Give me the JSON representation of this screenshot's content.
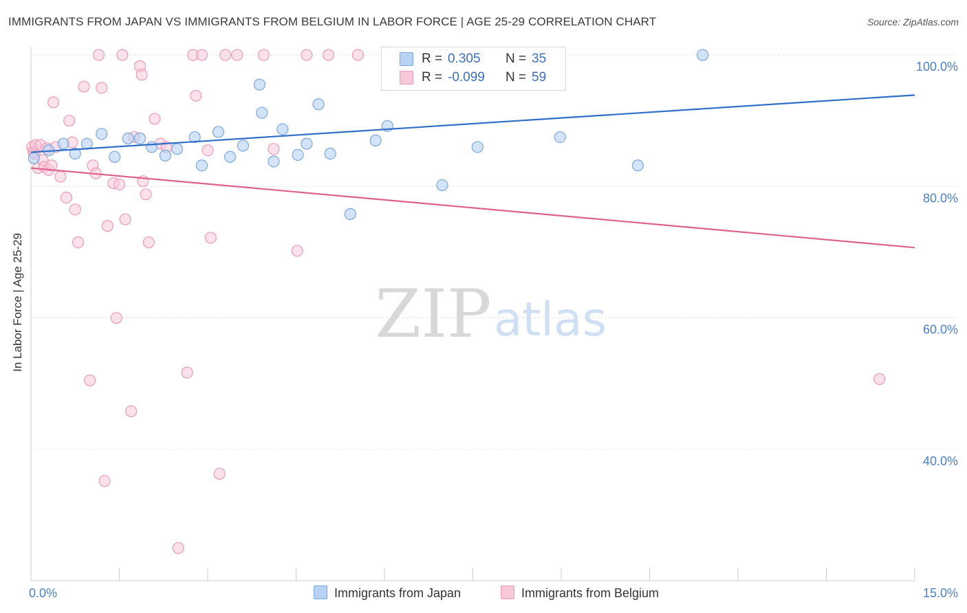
{
  "header": {
    "title": "IMMIGRANTS FROM JAPAN VS IMMIGRANTS FROM BELGIUM IN LABOR FORCE | AGE 25-29 CORRELATION CHART",
    "source": "Source: ZipAtlas.com"
  },
  "watermark": {
    "zip": "ZIP",
    "atlas": "atlas"
  },
  "legend": {
    "japan": {
      "r_label": "R =",
      "r_value": "0.305",
      "n_label": "N =",
      "n_value": "35"
    },
    "belgium": {
      "r_label": "R =",
      "r_value": "-0.099",
      "n_label": "N =",
      "n_value": "59"
    }
  },
  "colors": {
    "japan_fill": "#b8d2f4",
    "japan_stroke": "#7aa6e0",
    "japan_line": "#2e6fc7",
    "belgium_fill": "#f8c8d8",
    "belgium_stroke": "#ee9ab5",
    "belgium_line": "#e0608b",
    "axis_text": "#4a7fd0"
  },
  "chart_data": {
    "type": "scatter",
    "title": "IMMIGRANTS FROM JAPAN VS IMMIGRANTS FROM BELGIUM IN LABOR FORCE | AGE 25-29 CORRELATION CHART",
    "xlabel": "",
    "ylabel": "In Labor Force | Age 25-29",
    "xlim": [
      0,
      15
    ],
    "ylim": [
      20,
      100
    ],
    "x_tick_labels": [
      "0.0%",
      "15.0%"
    ],
    "y_tick_labels": [
      "100.0%",
      "80.0%",
      "60.0%",
      "40.0%"
    ],
    "y_ticks": [
      100,
      80,
      60,
      40
    ],
    "grid": true,
    "legend_position": "bottom",
    "series": [
      {
        "name": "Immigrants from Japan",
        "x": [
          0.05,
          0.3,
          0.55,
          0.75,
          0.95,
          1.2,
          1.42,
          1.65,
          1.85,
          2.05,
          2.28,
          2.48,
          2.78,
          2.9,
          3.18,
          3.38,
          3.6,
          3.88,
          3.92,
          4.12,
          4.27,
          4.53,
          4.68,
          4.88,
          5.08,
          5.42,
          5.85,
          6.05,
          6.25,
          6.98,
          7.0,
          7.58,
          8.98,
          10.3,
          11.4
        ],
        "y": [
          84.3,
          85.5,
          86.5,
          85.0,
          86.5,
          88.0,
          84.5,
          87.3,
          87.3,
          86.0,
          84.7,
          85.7,
          87.5,
          83.2,
          88.3,
          84.5,
          86.2,
          95.5,
          91.2,
          83.8,
          88.7,
          84.8,
          86.5,
          92.5,
          85.0,
          75.8,
          87.0,
          89.2,
          100.0,
          80.2,
          100.0,
          86.0,
          87.5,
          83.2,
          100.0
        ]
      },
      {
        "name": "Immigrants from Belgium",
        "x": [
          0.02,
          0.04,
          0.06,
          0.08,
          0.12,
          0.16,
          0.2,
          0.23,
          0.27,
          0.3,
          0.35,
          0.38,
          0.42,
          0.5,
          0.6,
          0.65,
          0.7,
          0.75,
          0.8,
          0.9,
          1.0,
          1.05,
          1.1,
          1.15,
          1.2,
          1.25,
          1.3,
          1.4,
          1.45,
          1.5,
          1.55,
          1.6,
          1.7,
          1.75,
          1.85,
          1.88,
          1.9,
          1.95,
          2.0,
          2.1,
          2.2,
          2.3,
          2.5,
          2.65,
          2.75,
          2.8,
          2.9,
          3.0,
          3.05,
          3.2,
          3.3,
          3.5,
          3.95,
          4.12,
          4.52,
          4.68,
          5.05,
          5.55,
          14.4
        ],
        "y": [
          86.0,
          85.3,
          85.0,
          86.3,
          82.8,
          86.3,
          84.0,
          83.0,
          85.8,
          82.5,
          83.2,
          92.8,
          86.0,
          81.5,
          78.3,
          90.0,
          86.7,
          76.5,
          71.5,
          95.2,
          50.5,
          83.2,
          82.0,
          100.0,
          95.0,
          35.2,
          74.0,
          80.5,
          60.0,
          80.3,
          100.0,
          75.0,
          45.8,
          87.5,
          98.3,
          97.0,
          80.8,
          78.8,
          71.5,
          90.3,
          86.5,
          86.0,
          25.0,
          51.7,
          100.0,
          93.8,
          100.0,
          85.5,
          72.2,
          36.3,
          100.0,
          100.0,
          100.0,
          85.7,
          70.2,
          100.0,
          100.0,
          100.0,
          50.7
        ]
      }
    ],
    "trend_lines": [
      {
        "series": "Immigrants from Japan",
        "x": [
          0,
          15
        ],
        "y": [
          85.2,
          93.9
        ]
      },
      {
        "series": "Immigrants from Belgium",
        "x": [
          0,
          15
        ],
        "y": [
          82.8,
          70.7
        ]
      }
    ]
  }
}
